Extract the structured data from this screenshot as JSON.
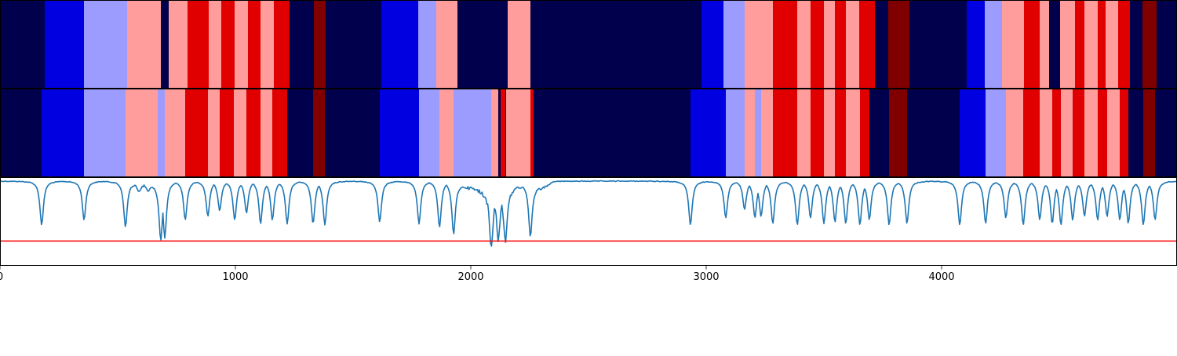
{
  "chart_data": {
    "type": "heatmap",
    "xlim": [
      0,
      5000
    ],
    "x_ticks": [
      {
        "value": 0,
        "label": "0"
      },
      {
        "value": 1000,
        "label": "1000"
      },
      {
        "value": 2000,
        "label": "2000"
      },
      {
        "value": 3000,
        "label": "3000"
      },
      {
        "value": 4000,
        "label": "4000"
      }
    ],
    "palette": {
      "0": "#00004c",
      "1": "#0000e0",
      "2": "#9c9cff",
      "3": "#ff9c9c",
      "4": "#e00000",
      "5": "#800000"
    },
    "segmentation_tracks": [
      {
        "segments": [
          [
            0,
            190,
            0
          ],
          [
            190,
            357,
            1
          ],
          [
            357,
            540,
            2
          ],
          [
            540,
            683,
            3
          ],
          [
            683,
            717,
            0
          ],
          [
            717,
            797,
            3
          ],
          [
            797,
            887,
            4
          ],
          [
            887,
            940,
            3
          ],
          [
            940,
            997,
            4
          ],
          [
            997,
            1053,
            3
          ],
          [
            1053,
            1107,
            4
          ],
          [
            1107,
            1163,
            3
          ],
          [
            1163,
            1230,
            4
          ],
          [
            1230,
            1333,
            0
          ],
          [
            1333,
            1383,
            5
          ],
          [
            1383,
            1620,
            0
          ],
          [
            1620,
            1777,
            1
          ],
          [
            1777,
            1853,
            2
          ],
          [
            1853,
            1943,
            3
          ],
          [
            1943,
            2157,
            0
          ],
          [
            2157,
            2253,
            3
          ],
          [
            2253,
            2980,
            0
          ],
          [
            2980,
            3073,
            1
          ],
          [
            3073,
            3163,
            2
          ],
          [
            3163,
            3283,
            3
          ],
          [
            3283,
            3387,
            4
          ],
          [
            3387,
            3443,
            3
          ],
          [
            3443,
            3500,
            4
          ],
          [
            3500,
            3547,
            3
          ],
          [
            3547,
            3593,
            4
          ],
          [
            3593,
            3650,
            3
          ],
          [
            3650,
            3717,
            4
          ],
          [
            3717,
            3773,
            0
          ],
          [
            3773,
            3863,
            5
          ],
          [
            3863,
            4107,
            0
          ],
          [
            4107,
            4183,
            1
          ],
          [
            4183,
            4257,
            2
          ],
          [
            4257,
            4350,
            3
          ],
          [
            4350,
            4417,
            4
          ],
          [
            4417,
            4457,
            3
          ],
          [
            4457,
            4503,
            0
          ],
          [
            4503,
            4567,
            3
          ],
          [
            4567,
            4607,
            4
          ],
          [
            4607,
            4663,
            3
          ],
          [
            4663,
            4697,
            4
          ],
          [
            4697,
            4750,
            3
          ],
          [
            4750,
            4800,
            4
          ],
          [
            4800,
            4853,
            0
          ],
          [
            4853,
            4913,
            5
          ],
          [
            4913,
            5000,
            0
          ]
        ]
      },
      {
        "segments": [
          [
            0,
            177,
            0
          ],
          [
            177,
            357,
            1
          ],
          [
            357,
            533,
            2
          ],
          [
            533,
            670,
            3
          ],
          [
            670,
            700,
            2
          ],
          [
            700,
            787,
            3
          ],
          [
            787,
            883,
            4
          ],
          [
            883,
            933,
            3
          ],
          [
            933,
            993,
            4
          ],
          [
            993,
            1047,
            3
          ],
          [
            1047,
            1107,
            4
          ],
          [
            1107,
            1157,
            3
          ],
          [
            1157,
            1220,
            4
          ],
          [
            1220,
            1330,
            0
          ],
          [
            1330,
            1380,
            5
          ],
          [
            1380,
            1613,
            0
          ],
          [
            1613,
            1780,
            1
          ],
          [
            1780,
            1867,
            2
          ],
          [
            1867,
            1927,
            3
          ],
          [
            1927,
            2087,
            2
          ],
          [
            2087,
            2117,
            3
          ],
          [
            2117,
            2127,
            0
          ],
          [
            2127,
            2147,
            4
          ],
          [
            2147,
            2150,
            0
          ],
          [
            2150,
            2253,
            3
          ],
          [
            2253,
            2267,
            4
          ],
          [
            2267,
            2933,
            0
          ],
          [
            2933,
            3083,
            1
          ],
          [
            3083,
            3163,
            2
          ],
          [
            3163,
            3207,
            3
          ],
          [
            3207,
            3233,
            2
          ],
          [
            3233,
            3283,
            3
          ],
          [
            3283,
            3387,
            4
          ],
          [
            3387,
            3443,
            3
          ],
          [
            3443,
            3500,
            4
          ],
          [
            3500,
            3547,
            3
          ],
          [
            3547,
            3593,
            4
          ],
          [
            3593,
            3653,
            3
          ],
          [
            3653,
            3693,
            4
          ],
          [
            3693,
            3777,
            0
          ],
          [
            3777,
            3853,
            5
          ],
          [
            3853,
            4077,
            0
          ],
          [
            4077,
            4187,
            1
          ],
          [
            4187,
            4273,
            2
          ],
          [
            4273,
            4347,
            3
          ],
          [
            4347,
            4417,
            4
          ],
          [
            4417,
            4470,
            3
          ],
          [
            4470,
            4507,
            4
          ],
          [
            4507,
            4557,
            3
          ],
          [
            4557,
            4607,
            4
          ],
          [
            4607,
            4663,
            3
          ],
          [
            4663,
            4703,
            4
          ],
          [
            4703,
            4757,
            3
          ],
          [
            4757,
            4793,
            4
          ],
          [
            4793,
            4857,
            0
          ],
          [
            4857,
            4907,
            5
          ],
          [
            4907,
            5000,
            0
          ]
        ]
      }
    ],
    "line_plot": {
      "ylim": [
        -1.2,
        0.05
      ],
      "line_color": "#1f77b4",
      "baseline_color": "#ff0000",
      "baseline_y": -0.85,
      "base_noise": [
        0,
        -0.01
      ],
      "dips": [
        [
          177,
          0.62
        ],
        [
          357,
          0.55
        ],
        [
          533,
          0.65
        ],
        [
          590,
          0.12
        ],
        [
          630,
          0.1
        ],
        [
          683,
          0.82
        ],
        [
          700,
          0.8
        ],
        [
          787,
          0.55
        ],
        [
          883,
          0.5
        ],
        [
          933,
          0.42
        ],
        [
          997,
          0.55
        ],
        [
          1047,
          0.45
        ],
        [
          1107,
          0.6
        ],
        [
          1157,
          0.55
        ],
        [
          1220,
          0.6
        ],
        [
          1330,
          0.6
        ],
        [
          1380,
          0.62
        ],
        [
          1613,
          0.58
        ],
        [
          1780,
          0.6
        ],
        [
          1867,
          0.65
        ],
        [
          1927,
          0.75
        ],
        [
          2087,
          0.8
        ],
        [
          2117,
          0.7
        ],
        [
          2147,
          0.75
        ],
        [
          2253,
          0.78
        ],
        [
          2933,
          0.62
        ],
        [
          3083,
          0.52
        ],
        [
          3163,
          0.4
        ],
        [
          3207,
          0.52
        ],
        [
          3233,
          0.5
        ],
        [
          3283,
          0.6
        ],
        [
          3387,
          0.62
        ],
        [
          3443,
          0.52
        ],
        [
          3500,
          0.6
        ],
        [
          3547,
          0.58
        ],
        [
          3593,
          0.6
        ],
        [
          3653,
          0.62
        ],
        [
          3693,
          0.55
        ],
        [
          3777,
          0.62
        ],
        [
          3853,
          0.6
        ],
        [
          4077,
          0.62
        ],
        [
          4187,
          0.6
        ],
        [
          4273,
          0.52
        ],
        [
          4347,
          0.62
        ],
        [
          4417,
          0.55
        ],
        [
          4470,
          0.6
        ],
        [
          4507,
          0.62
        ],
        [
          4557,
          0.55
        ],
        [
          4607,
          0.5
        ],
        [
          4663,
          0.55
        ],
        [
          4703,
          0.5
        ],
        [
          4757,
          0.55
        ],
        [
          4793,
          0.6
        ],
        [
          4857,
          0.62
        ],
        [
          4907,
          0.55
        ]
      ],
      "noisy_regions": [
        [
          540,
          700,
          0.06
        ],
        [
          1930,
          2250,
          0.18
        ],
        [
          2250,
          2350,
          0.1
        ]
      ]
    }
  }
}
